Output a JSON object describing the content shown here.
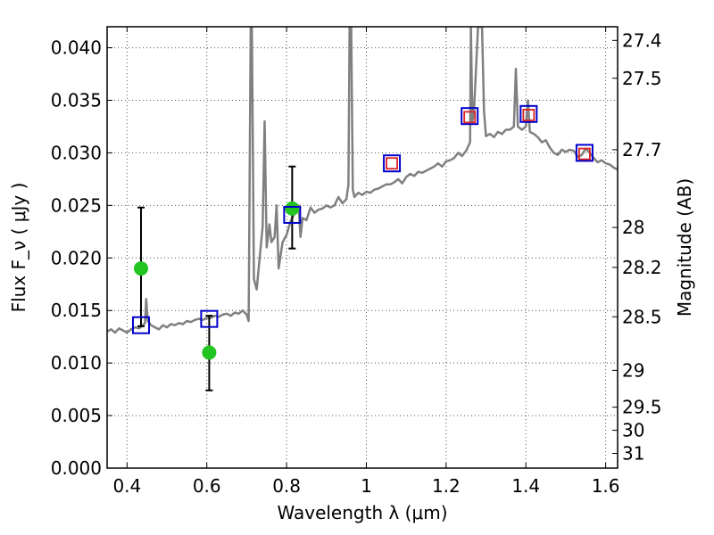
{
  "chart_data": {
    "type": "line",
    "xlabel": "Wavelength  λ (μm)",
    "ylabel": "Flux  F_ν  ( μJy )",
    "y2label": "Magnitude (AB)",
    "xlim": [
      0.35,
      1.63
    ],
    "ylim": [
      0.0,
      0.042
    ],
    "grid": true,
    "x_ticks": [
      {
        "value": 0.4,
        "label": "0.4"
      },
      {
        "value": 0.6,
        "label": "0.6"
      },
      {
        "value": 0.8,
        "label": "0.8"
      },
      {
        "value": 1.0,
        "label": "1"
      },
      {
        "value": 1.2,
        "label": "1.2"
      },
      {
        "value": 1.4,
        "label": "1.4"
      },
      {
        "value": 1.6,
        "label": "1.6"
      }
    ],
    "y_ticks": [
      {
        "value": 0.0,
        "label": "0.000"
      },
      {
        "value": 0.005,
        "label": "0.005"
      },
      {
        "value": 0.01,
        "label": "0.010"
      },
      {
        "value": 0.015,
        "label": "0.015"
      },
      {
        "value": 0.02,
        "label": "0.020"
      },
      {
        "value": 0.025,
        "label": "0.025"
      },
      {
        "value": 0.03,
        "label": "0.030"
      },
      {
        "value": 0.035,
        "label": "0.035"
      },
      {
        "value": 0.04,
        "label": "0.040"
      }
    ],
    "y2_ticks": [
      {
        "flux": 0.0407,
        "label": "27.4"
      },
      {
        "flux": 0.0371,
        "label": "27.5"
      },
      {
        "flux": 0.0303,
        "label": "27.7"
      },
      {
        "flux": 0.0229,
        "label": "28"
      },
      {
        "flux": 0.0191,
        "label": "28.2"
      },
      {
        "flux": 0.0144,
        "label": "28.5"
      },
      {
        "flux": 0.0093,
        "label": "29"
      },
      {
        "flux": 0.0058,
        "label": "29.5"
      },
      {
        "flux": 0.0036,
        "label": "30"
      },
      {
        "flux": 0.0014,
        "label": "31"
      }
    ],
    "colors": {
      "spectrum": "#808080",
      "observed": "#22c422",
      "model_blue": "#0000cc",
      "model_red": "#dd2222",
      "errorbar": "#000000",
      "grid": "#555555"
    },
    "series": [
      {
        "kind": "spectrum",
        "points": [
          [
            0.35,
            0.013
          ],
          [
            0.36,
            0.0132
          ],
          [
            0.37,
            0.0129
          ],
          [
            0.38,
            0.0133
          ],
          [
            0.39,
            0.0131
          ],
          [
            0.4,
            0.0129
          ],
          [
            0.41,
            0.0132
          ],
          [
            0.42,
            0.0134
          ],
          [
            0.43,
            0.0133
          ],
          [
            0.44,
            0.0136
          ],
          [
            0.445,
            0.0138
          ],
          [
            0.448,
            0.0161
          ],
          [
            0.452,
            0.014
          ],
          [
            0.46,
            0.0136
          ],
          [
            0.47,
            0.0134
          ],
          [
            0.48,
            0.0132
          ],
          [
            0.49,
            0.0136
          ],
          [
            0.5,
            0.0134
          ],
          [
            0.51,
            0.0137
          ],
          [
            0.52,
            0.0136
          ],
          [
            0.53,
            0.0138
          ],
          [
            0.54,
            0.0137
          ],
          [
            0.55,
            0.014
          ],
          [
            0.56,
            0.0139
          ],
          [
            0.57,
            0.0141
          ],
          [
            0.58,
            0.0142
          ],
          [
            0.59,
            0.0141
          ],
          [
            0.6,
            0.0143
          ],
          [
            0.61,
            0.0143
          ],
          [
            0.62,
            0.0145
          ],
          [
            0.63,
            0.0144
          ],
          [
            0.64,
            0.0146
          ],
          [
            0.65,
            0.0147
          ],
          [
            0.66,
            0.0145
          ],
          [
            0.67,
            0.0148
          ],
          [
            0.68,
            0.0147
          ],
          [
            0.69,
            0.015
          ],
          [
            0.7,
            0.0146
          ],
          [
            0.705,
            0.014
          ],
          [
            0.71,
            0.042
          ],
          [
            0.713,
            0.042
          ],
          [
            0.718,
            0.018
          ],
          [
            0.725,
            0.017
          ],
          [
            0.73,
            0.019
          ],
          [
            0.74,
            0.023
          ],
          [
            0.745,
            0.033
          ],
          [
            0.75,
            0.021
          ],
          [
            0.757,
            0.0232
          ],
          [
            0.762,
            0.0215
          ],
          [
            0.77,
            0.022
          ],
          [
            0.775,
            0.025
          ],
          [
            0.78,
            0.019
          ],
          [
            0.79,
            0.0215
          ],
          [
            0.8,
            0.0222
          ],
          [
            0.81,
            0.0235
          ],
          [
            0.82,
            0.0242
          ],
          [
            0.83,
            0.025
          ],
          [
            0.835,
            0.022
          ],
          [
            0.84,
            0.0238
          ],
          [
            0.85,
            0.0236
          ],
          [
            0.86,
            0.0248
          ],
          [
            0.87,
            0.0243
          ],
          [
            0.88,
            0.0246
          ],
          [
            0.89,
            0.0247
          ],
          [
            0.9,
            0.025
          ],
          [
            0.91,
            0.0248
          ],
          [
            0.92,
            0.025
          ],
          [
            0.93,
            0.0258
          ],
          [
            0.94,
            0.0252
          ],
          [
            0.95,
            0.0256
          ],
          [
            0.955,
            0.027
          ],
          [
            0.958,
            0.042
          ],
          [
            0.962,
            0.042
          ],
          [
            0.966,
            0.0265
          ],
          [
            0.97,
            0.0258
          ],
          [
            0.98,
            0.0262
          ],
          [
            0.99,
            0.026
          ],
          [
            1.0,
            0.0263
          ],
          [
            1.01,
            0.0262
          ],
          [
            1.02,
            0.0265
          ],
          [
            1.03,
            0.0266
          ],
          [
            1.04,
            0.0268
          ],
          [
            1.05,
            0.027
          ],
          [
            1.06,
            0.027
          ],
          [
            1.07,
            0.0272
          ],
          [
            1.08,
            0.0275
          ],
          [
            1.09,
            0.0271
          ],
          [
            1.1,
            0.0277
          ],
          [
            1.11,
            0.028
          ],
          [
            1.12,
            0.0278
          ],
          [
            1.13,
            0.0282
          ],
          [
            1.14,
            0.0281
          ],
          [
            1.15,
            0.0283
          ],
          [
            1.16,
            0.0285
          ],
          [
            1.17,
            0.0287
          ],
          [
            1.18,
            0.029
          ],
          [
            1.19,
            0.0287
          ],
          [
            1.2,
            0.0292
          ],
          [
            1.21,
            0.0293
          ],
          [
            1.22,
            0.0295
          ],
          [
            1.23,
            0.03
          ],
          [
            1.24,
            0.0297
          ],
          [
            1.25,
            0.0302
          ],
          [
            1.26,
            0.031
          ],
          [
            1.262,
            0.042
          ],
          [
            1.266,
            0.033
          ],
          [
            1.27,
            0.034
          ],
          [
            1.28,
            0.042
          ],
          [
            1.29,
            0.042
          ],
          [
            1.295,
            0.034
          ],
          [
            1.3,
            0.0316
          ],
          [
            1.31,
            0.0318
          ],
          [
            1.32,
            0.0315
          ],
          [
            1.33,
            0.032
          ],
          [
            1.34,
            0.0318
          ],
          [
            1.35,
            0.0322
          ],
          [
            1.36,
            0.0322
          ],
          [
            1.37,
            0.0325
          ],
          [
            1.375,
            0.038
          ],
          [
            1.38,
            0.0325
          ],
          [
            1.39,
            0.0322
          ],
          [
            1.4,
            0.0325
          ],
          [
            1.405,
            0.035
          ],
          [
            1.41,
            0.032
          ],
          [
            1.42,
            0.0318
          ],
          [
            1.43,
            0.0315
          ],
          [
            1.44,
            0.031
          ],
          [
            1.45,
            0.0312
          ],
          [
            1.46,
            0.0305
          ],
          [
            1.47,
            0.03
          ],
          [
            1.48,
            0.0298
          ],
          [
            1.49,
            0.0303
          ],
          [
            1.5,
            0.0301
          ],
          [
            1.51,
            0.0303
          ],
          [
            1.52,
            0.0302
          ],
          [
            1.53,
            0.0296
          ],
          [
            1.54,
            0.0298
          ],
          [
            1.55,
            0.0304
          ],
          [
            1.56,
            0.03
          ],
          [
            1.57,
            0.0295
          ],
          [
            1.58,
            0.0291
          ],
          [
            1.59,
            0.0293
          ],
          [
            1.6,
            0.029
          ],
          [
            1.61,
            0.0289
          ],
          [
            1.62,
            0.0286
          ],
          [
            1.63,
            0.0284
          ]
        ]
      },
      {
        "kind": "observed",
        "marker": "circle",
        "points": [
          {
            "x": 0.435,
            "y": 0.019,
            "yerr": [
              0.0135,
              0.0248
            ]
          },
          {
            "x": 0.606,
            "y": 0.011,
            "yerr": [
              0.0074,
              0.0145
            ]
          },
          {
            "x": 0.814,
            "y": 0.0247,
            "yerr": [
              0.0209,
              0.0287
            ]
          }
        ]
      },
      {
        "kind": "model_blue",
        "marker": "open-square",
        "points": [
          {
            "x": 0.435,
            "y": 0.0136
          },
          {
            "x": 0.606,
            "y": 0.0142
          },
          {
            "x": 0.814,
            "y": 0.0241
          },
          {
            "x": 1.064,
            "y": 0.029
          },
          {
            "x": 1.259,
            "y": 0.0335
          },
          {
            "x": 1.407,
            "y": 0.0337
          },
          {
            "x": 1.547,
            "y": 0.03
          }
        ]
      },
      {
        "kind": "model_red",
        "marker": "open-square",
        "points": [
          {
            "x": 1.064,
            "y": 0.029
          },
          {
            "x": 1.259,
            "y": 0.0334
          },
          {
            "x": 1.407,
            "y": 0.0336
          },
          {
            "x": 1.547,
            "y": 0.0299
          }
        ]
      }
    ]
  }
}
